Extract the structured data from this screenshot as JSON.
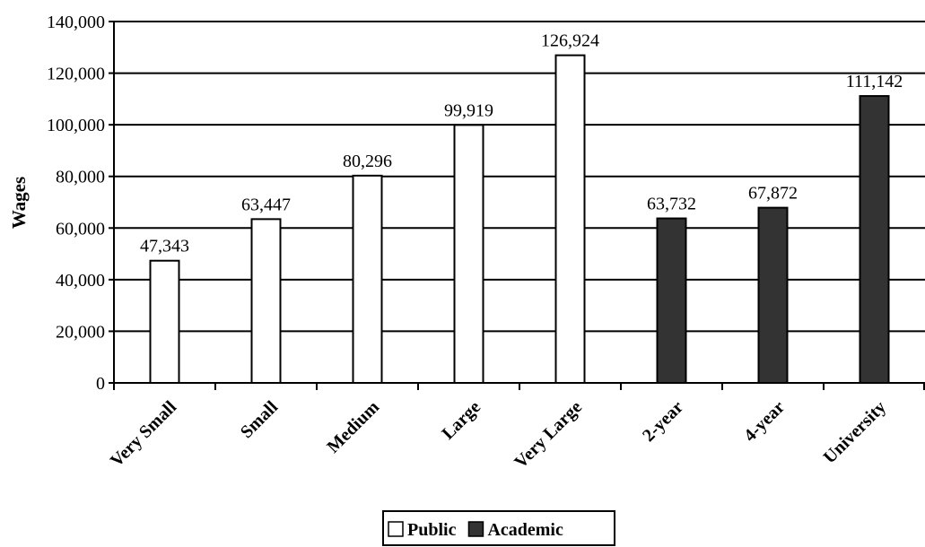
{
  "chart_data": {
    "type": "bar",
    "title": "",
    "xlabel": "",
    "ylabel": "Wages",
    "ylim": [
      0,
      140000
    ],
    "yticks": [
      "0",
      "20,000",
      "40,000",
      "60,000",
      "80,000",
      "100,000",
      "120,000",
      "140,000"
    ],
    "ytick_values": [
      0,
      20000,
      40000,
      60000,
      80000,
      100000,
      120000,
      140000
    ],
    "grid": true,
    "legend_position": "bottom",
    "categories": [
      "Very Small",
      "Small",
      "Medium",
      "Large",
      "Very Large",
      "2-year",
      "4-year",
      "University"
    ],
    "series": [
      {
        "name": "Public",
        "color": "#ffffff",
        "values": [
          47343,
          63447,
          80296,
          99919,
          126924,
          null,
          null,
          null
        ],
        "labels": [
          "47,343",
          "63,447",
          "80,296",
          "99,919",
          "126,924",
          "",
          "",
          ""
        ]
      },
      {
        "name": "Academic",
        "color": "#333333",
        "values": [
          null,
          null,
          null,
          null,
          null,
          63732,
          67872,
          111142
        ],
        "labels": [
          "",
          "",
          "",
          "",
          "",
          "63,732",
          "67,872",
          "111,142"
        ]
      }
    ]
  }
}
